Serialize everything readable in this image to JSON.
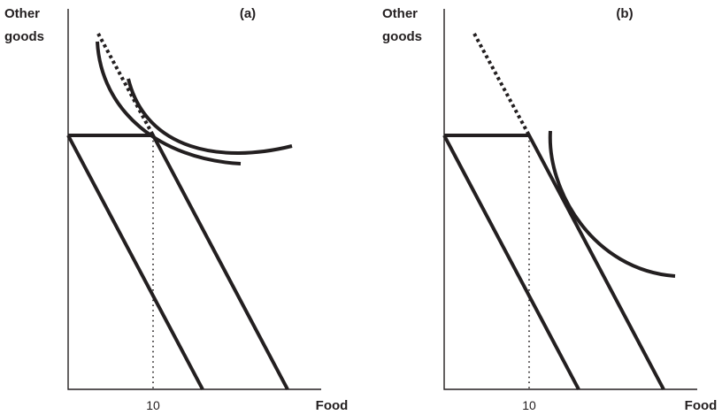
{
  "panels": [
    {
      "label": "(a)",
      "y_axis_label_line1": "Other",
      "y_axis_label_line2": "goods",
      "x_axis_label": "Food",
      "x_tick_label": "10"
    },
    {
      "label": "(b)",
      "y_axis_label_line1": "Other",
      "y_axis_label_line2": "goods",
      "x_axis_label": "Food",
      "x_tick_label": "10"
    }
  ]
}
